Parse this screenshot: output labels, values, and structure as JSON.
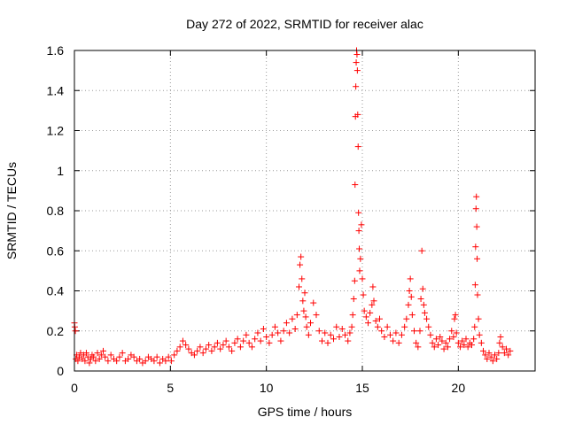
{
  "chart_data": {
    "type": "scatter",
    "title": "Day 272 of 2022, SRMTID for receiver alac",
    "xlabel": "GPS time / hours",
    "ylabel": "SRMTID / TECUs",
    "xlim": [
      0,
      24
    ],
    "ylim": [
      0,
      1.6
    ],
    "grid": true,
    "marker": "+",
    "series_color": "#ff0000",
    "xticks": [
      0,
      5,
      10,
      15,
      20
    ],
    "xtick_labels": [
      "0",
      "5",
      "10",
      "15",
      "20"
    ],
    "yticks": [
      0,
      0.2,
      0.4,
      0.6,
      0.8,
      1,
      1.2,
      1.4,
      1.6
    ],
    "ytick_labels": [
      "0",
      "0.2",
      "0.4",
      "0.6",
      "0.8",
      "1",
      "1.2",
      "1.4",
      "1.6"
    ],
    "series": [
      {
        "name": "SRMTID",
        "points": [
          [
            0.0,
            0.24
          ],
          [
            0.02,
            0.22
          ],
          [
            0.05,
            0.2
          ],
          [
            0.08,
            0.06
          ],
          [
            0.12,
            0.08
          ],
          [
            0.18,
            0.05
          ],
          [
            0.25,
            0.07
          ],
          [
            0.32,
            0.09
          ],
          [
            0.4,
            0.06
          ],
          [
            0.48,
            0.08
          ],
          [
            0.55,
            0.05
          ],
          [
            0.62,
            0.09
          ],
          [
            0.7,
            0.07
          ],
          [
            0.78,
            0.04
          ],
          [
            0.85,
            0.06
          ],
          [
            0.92,
            0.08
          ],
          [
            1.0,
            0.07
          ],
          [
            1.1,
            0.05
          ],
          [
            1.2,
            0.09
          ],
          [
            1.3,
            0.06
          ],
          [
            1.4,
            0.08
          ],
          [
            1.5,
            0.1
          ],
          [
            1.6,
            0.07
          ],
          [
            1.75,
            0.05
          ],
          [
            1.9,
            0.08
          ],
          [
            2.05,
            0.06
          ],
          [
            2.2,
            0.05
          ],
          [
            2.35,
            0.07
          ],
          [
            2.5,
            0.09
          ],
          [
            2.65,
            0.05
          ],
          [
            2.8,
            0.06
          ],
          [
            2.95,
            0.08
          ],
          [
            3.1,
            0.07
          ],
          [
            3.25,
            0.05
          ],
          [
            3.4,
            0.06
          ],
          [
            3.55,
            0.04
          ],
          [
            3.7,
            0.05
          ],
          [
            3.85,
            0.07
          ],
          [
            4.0,
            0.06
          ],
          [
            4.15,
            0.05
          ],
          [
            4.3,
            0.07
          ],
          [
            4.45,
            0.04
          ],
          [
            4.6,
            0.06
          ],
          [
            4.75,
            0.05
          ],
          [
            4.9,
            0.07
          ],
          [
            5.05,
            0.05
          ],
          [
            5.2,
            0.08
          ],
          [
            5.35,
            0.1
          ],
          [
            5.5,
            0.12
          ],
          [
            5.65,
            0.15
          ],
          [
            5.8,
            0.13
          ],
          [
            5.95,
            0.11
          ],
          [
            6.1,
            0.09
          ],
          [
            6.25,
            0.08
          ],
          [
            6.4,
            0.1
          ],
          [
            6.55,
            0.12
          ],
          [
            6.7,
            0.09
          ],
          [
            6.85,
            0.11
          ],
          [
            7.0,
            0.13
          ],
          [
            7.15,
            0.1
          ],
          [
            7.3,
            0.12
          ],
          [
            7.45,
            0.14
          ],
          [
            7.6,
            0.11
          ],
          [
            7.75,
            0.13
          ],
          [
            7.9,
            0.15
          ],
          [
            8.05,
            0.12
          ],
          [
            8.2,
            0.1
          ],
          [
            8.35,
            0.14
          ],
          [
            8.5,
            0.16
          ],
          [
            8.65,
            0.12
          ],
          [
            8.8,
            0.15
          ],
          [
            8.95,
            0.18
          ],
          [
            9.1,
            0.14
          ],
          [
            9.25,
            0.12
          ],
          [
            9.4,
            0.16
          ],
          [
            9.55,
            0.19
          ],
          [
            9.7,
            0.15
          ],
          [
            9.85,
            0.21
          ],
          [
            10.0,
            0.17
          ],
          [
            10.15,
            0.14
          ],
          [
            10.3,
            0.18
          ],
          [
            10.45,
            0.22
          ],
          [
            10.6,
            0.19
          ],
          [
            10.75,
            0.15
          ],
          [
            10.9,
            0.2
          ],
          [
            11.05,
            0.24
          ],
          [
            11.2,
            0.19
          ],
          [
            11.35,
            0.26
          ],
          [
            11.5,
            0.21
          ],
          [
            11.6,
            0.28
          ],
          [
            11.7,
            0.42
          ],
          [
            11.75,
            0.53
          ],
          [
            11.8,
            0.57
          ],
          [
            11.85,
            0.46
          ],
          [
            11.9,
            0.35
          ],
          [
            11.95,
            0.3
          ],
          [
            12.0,
            0.39
          ],
          [
            12.05,
            0.27
          ],
          [
            12.1,
            0.22
          ],
          [
            12.2,
            0.18
          ],
          [
            12.3,
            0.24
          ],
          [
            12.45,
            0.34
          ],
          [
            12.6,
            0.28
          ],
          [
            12.75,
            0.2
          ],
          [
            12.9,
            0.15
          ],
          [
            13.05,
            0.19
          ],
          [
            13.2,
            0.14
          ],
          [
            13.35,
            0.18
          ],
          [
            13.5,
            0.16
          ],
          [
            13.65,
            0.22
          ],
          [
            13.8,
            0.17
          ],
          [
            13.95,
            0.21
          ],
          [
            14.1,
            0.18
          ],
          [
            14.25,
            0.15
          ],
          [
            14.35,
            0.19
          ],
          [
            14.45,
            0.22
          ],
          [
            14.5,
            0.28
          ],
          [
            14.55,
            0.36
          ],
          [
            14.6,
            0.45
          ],
          [
            14.62,
            0.93
          ],
          [
            14.64,
            1.27
          ],
          [
            14.66,
            1.42
          ],
          [
            14.68,
            1.54
          ],
          [
            14.7,
            1.6
          ],
          [
            14.72,
            1.58
          ],
          [
            14.74,
            1.5
          ],
          [
            14.76,
            1.28
          ],
          [
            14.78,
            1.12
          ],
          [
            14.8,
            0.79
          ],
          [
            14.82,
            0.7
          ],
          [
            14.84,
            0.61
          ],
          [
            14.86,
            0.5
          ],
          [
            14.9,
            0.56
          ],
          [
            14.95,
            0.73
          ],
          [
            15.0,
            0.46
          ],
          [
            15.05,
            0.38
          ],
          [
            15.1,
            0.3
          ],
          [
            15.2,
            0.27
          ],
          [
            15.3,
            0.24
          ],
          [
            15.4,
            0.29
          ],
          [
            15.5,
            0.33
          ],
          [
            15.55,
            0.42
          ],
          [
            15.6,
            0.35
          ],
          [
            15.7,
            0.25
          ],
          [
            15.8,
            0.22
          ],
          [
            15.9,
            0.26
          ],
          [
            16.0,
            0.2
          ],
          [
            16.15,
            0.17
          ],
          [
            16.3,
            0.22
          ],
          [
            16.45,
            0.18
          ],
          [
            16.6,
            0.15
          ],
          [
            16.75,
            0.19
          ],
          [
            16.9,
            0.14
          ],
          [
            17.05,
            0.18
          ],
          [
            17.2,
            0.22
          ],
          [
            17.3,
            0.26
          ],
          [
            17.4,
            0.33
          ],
          [
            17.45,
            0.4
          ],
          [
            17.5,
            0.46
          ],
          [
            17.55,
            0.37
          ],
          [
            17.6,
            0.28
          ],
          [
            17.7,
            0.2
          ],
          [
            17.8,
            0.14
          ],
          [
            17.9,
            0.12
          ],
          [
            18.0,
            0.2
          ],
          [
            18.05,
            0.36
          ],
          [
            18.1,
            0.6
          ],
          [
            18.15,
            0.41
          ],
          [
            18.2,
            0.33
          ],
          [
            18.25,
            0.29
          ],
          [
            18.35,
            0.26
          ],
          [
            18.45,
            0.22
          ],
          [
            18.55,
            0.18
          ],
          [
            18.65,
            0.14
          ],
          [
            18.75,
            0.12
          ],
          [
            18.85,
            0.16
          ],
          [
            18.95,
            0.13
          ],
          [
            19.05,
            0.17
          ],
          [
            19.15,
            0.15
          ],
          [
            19.25,
            0.11
          ],
          [
            19.35,
            0.14
          ],
          [
            19.45,
            0.12
          ],
          [
            19.55,
            0.16
          ],
          [
            19.65,
            0.2
          ],
          [
            19.75,
            0.17
          ],
          [
            19.8,
            0.26
          ],
          [
            19.85,
            0.28
          ],
          [
            19.9,
            0.19
          ],
          [
            20.0,
            0.14
          ],
          [
            20.1,
            0.12
          ],
          [
            20.2,
            0.15
          ],
          [
            20.3,
            0.13
          ],
          [
            20.4,
            0.16
          ],
          [
            20.5,
            0.12
          ],
          [
            20.6,
            0.14
          ],
          [
            20.7,
            0.13
          ],
          [
            20.8,
            0.16
          ],
          [
            20.85,
            0.22
          ],
          [
            20.88,
            0.43
          ],
          [
            20.9,
            0.62
          ],
          [
            20.92,
            0.81
          ],
          [
            20.94,
            0.87
          ],
          [
            20.96,
            0.72
          ],
          [
            20.98,
            0.56
          ],
          [
            21.0,
            0.38
          ],
          [
            21.05,
            0.26
          ],
          [
            21.1,
            0.18
          ],
          [
            21.2,
            0.14
          ],
          [
            21.3,
            0.1
          ],
          [
            21.4,
            0.08
          ],
          [
            21.5,
            0.06
          ],
          [
            21.6,
            0.09
          ],
          [
            21.7,
            0.07
          ],
          [
            21.8,
            0.05
          ],
          [
            21.9,
            0.08
          ],
          [
            22.0,
            0.06
          ],
          [
            22.1,
            0.09
          ],
          [
            22.15,
            0.14
          ],
          [
            22.2,
            0.17
          ],
          [
            22.3,
            0.12
          ],
          [
            22.4,
            0.09
          ],
          [
            22.5,
            0.11
          ],
          [
            22.6,
            0.08
          ],
          [
            22.7,
            0.1
          ]
        ]
      }
    ]
  }
}
